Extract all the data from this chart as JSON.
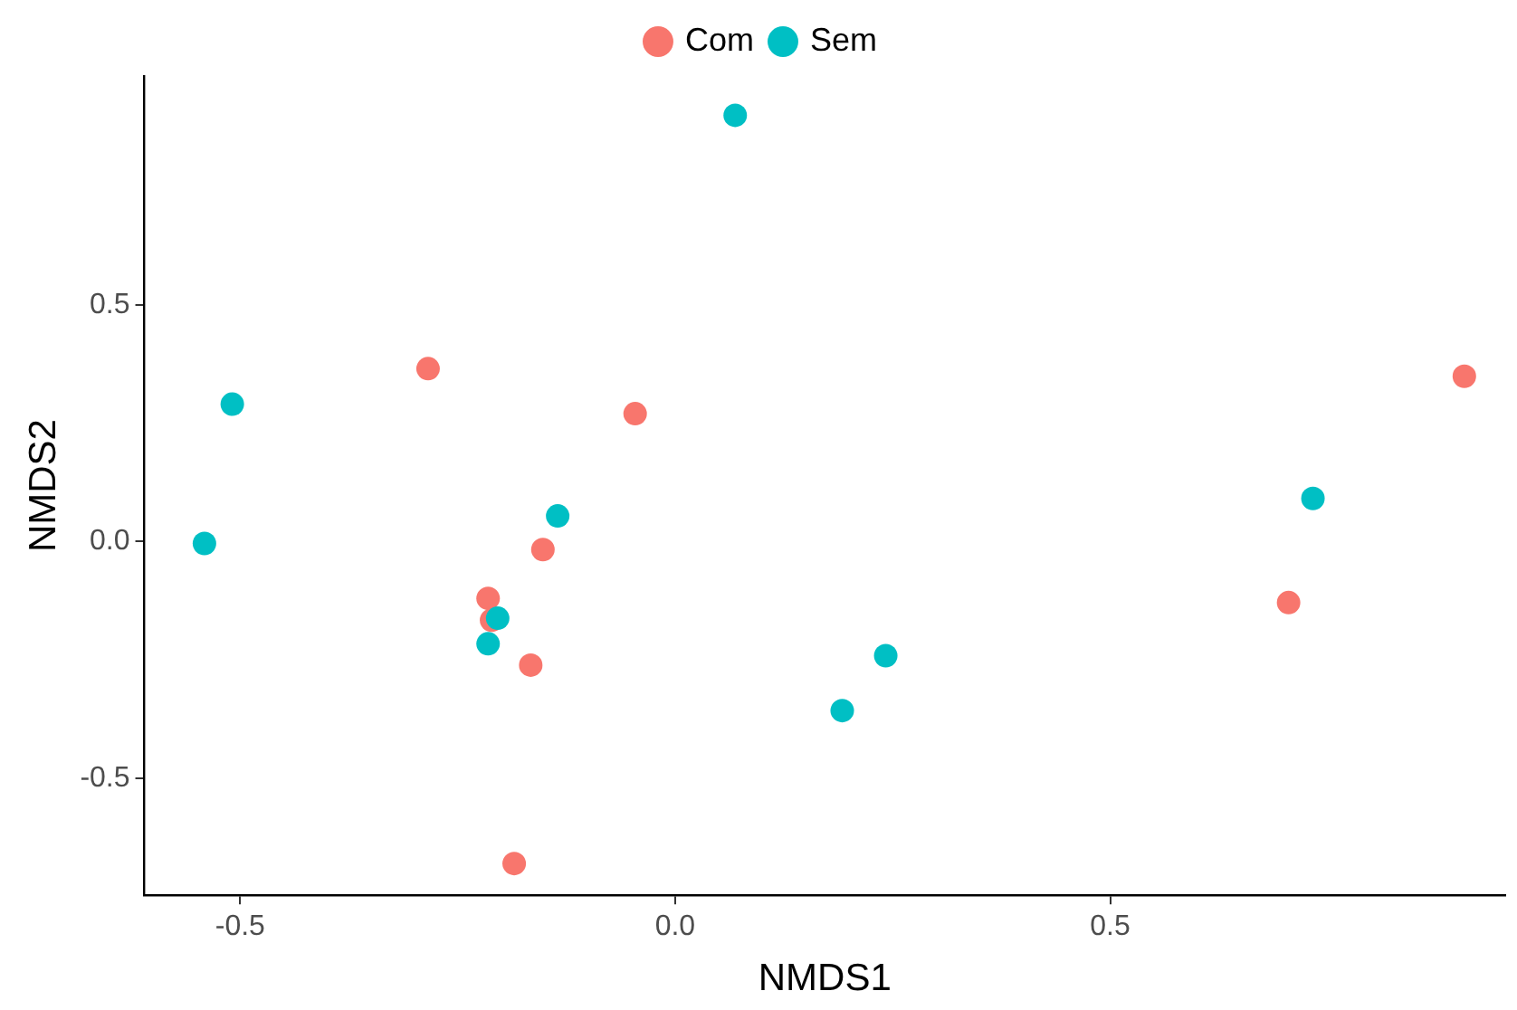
{
  "chart_data": {
    "type": "scatter",
    "xlabel": "NMDS1",
    "ylabel": "NMDS2",
    "xlim": [
      -0.61,
      0.954
    ],
    "ylim": [
      -0.747,
      0.983
    ],
    "xticks": [
      -0.5,
      {
        "value": 0,
        "label": "0.0"
      },
      0.5
    ],
    "yticks": [
      -0.5,
      {
        "value": 0,
        "label": "0.0"
      },
      0.5
    ],
    "grid": false,
    "legend": "top",
    "marker": "circle",
    "series": [
      {
        "name": "Com",
        "color": "#f8766d",
        "x": [
          -0.284,
          -0.046,
          0.907,
          -0.215,
          -0.211,
          -0.152,
          -0.166,
          0.705,
          -0.185
        ],
        "values": [
          0.365,
          0.27,
          0.349,
          -0.12,
          -0.166,
          -0.017,
          -0.261,
          -0.129,
          -0.68
        ]
      },
      {
        "name": "Sem",
        "color": "#00bfc4",
        "x": [
          0.069,
          -0.509,
          -0.541,
          -0.135,
          -0.204,
          -0.215,
          0.242,
          0.192,
          0.733
        ],
        "values": [
          0.9,
          0.29,
          -0.004,
          0.054,
          -0.162,
          -0.216,
          -0.241,
          -0.357,
          0.091
        ]
      }
    ]
  }
}
